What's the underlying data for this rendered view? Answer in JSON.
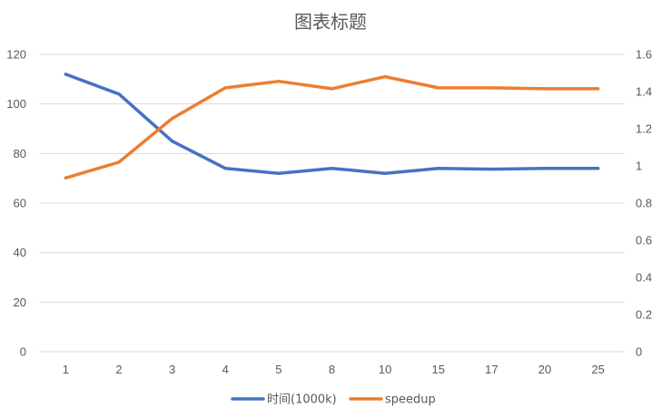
{
  "chart_data": {
    "type": "line",
    "title": "图表标题",
    "categories": [
      "1",
      "2",
      "3",
      "4",
      "5",
      "8",
      "10",
      "15",
      "17",
      "20",
      "25"
    ],
    "series": [
      {
        "name": "时间(1000k)",
        "axis": "left",
        "color": "#4472C4",
        "values": [
          112,
          104,
          85,
          74,
          72,
          74,
          72,
          74,
          73.7,
          74,
          74
        ]
      },
      {
        "name": "speedup",
        "axis": "right",
        "color": "#ED7D31",
        "values": [
          0.935,
          1.02,
          1.255,
          1.42,
          1.455,
          1.415,
          1.48,
          1.42,
          1.42,
          1.415,
          1.415
        ]
      }
    ],
    "y_left": {
      "min": 0,
      "max": 120,
      "ticks": [
        "0",
        "20",
        "40",
        "60",
        "80",
        "100",
        "120"
      ]
    },
    "y_right": {
      "min": 0,
      "max": 1.6,
      "ticks": [
        "0",
        "0.2",
        "0.4",
        "0.6",
        "0.8",
        "1",
        "1.2",
        "1.4",
        "1.6"
      ]
    },
    "grid": true,
    "legend_position": "bottom"
  }
}
